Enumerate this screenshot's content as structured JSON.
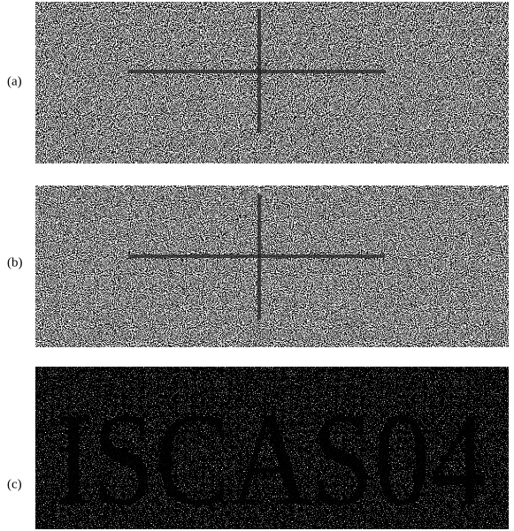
{
  "panels": [
    {
      "label": "(a)"
    },
    {
      "label": "(b)"
    },
    {
      "label": "(c)",
      "text": "ISCAS04"
    }
  ]
}
